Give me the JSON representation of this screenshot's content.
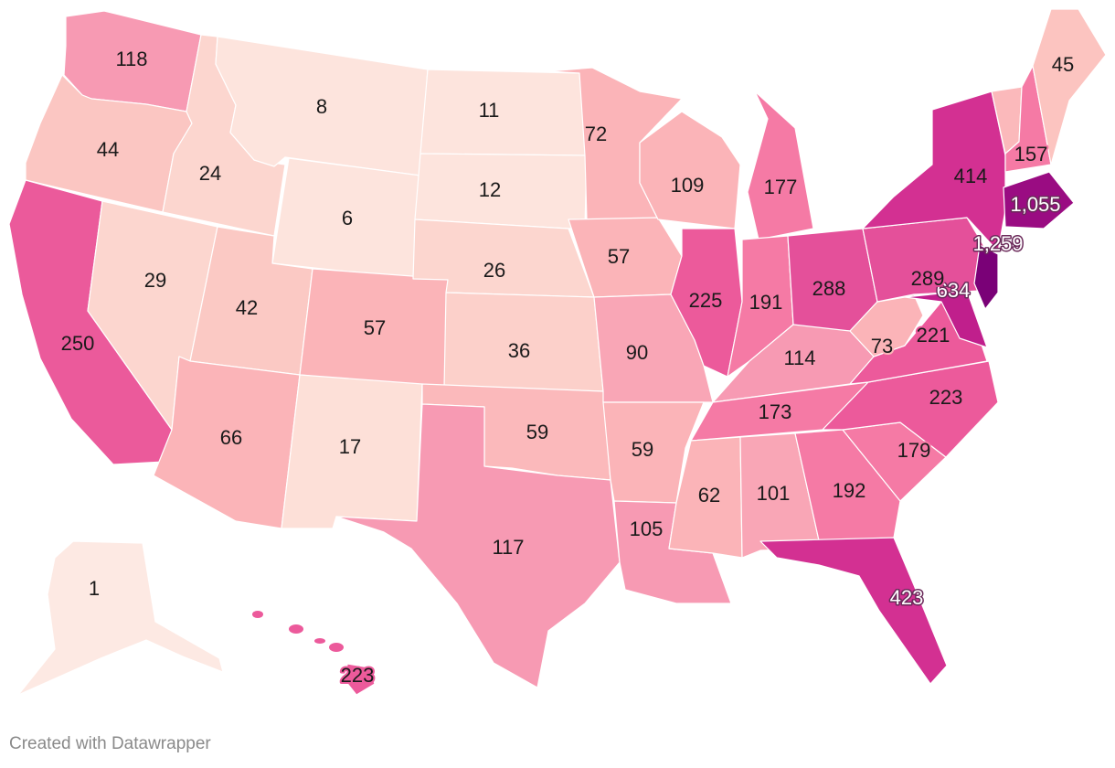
{
  "footer": {
    "credit": "Created with Datawrapper"
  },
  "chart_data": {
    "type": "choropleth",
    "title": "",
    "region": "United States",
    "colorscale": {
      "low": "#fde9e3",
      "mid": "#f47aa5",
      "high": "#7a0177"
    },
    "states": [
      {
        "state": "Washington",
        "abbr": "WA",
        "value": 118
      },
      {
        "state": "Oregon",
        "abbr": "OR",
        "value": 44
      },
      {
        "state": "California",
        "abbr": "CA",
        "value": 250
      },
      {
        "state": "Idaho",
        "abbr": "ID",
        "value": 24
      },
      {
        "state": "Nevada",
        "abbr": "NV",
        "value": 29
      },
      {
        "state": "Montana",
        "abbr": "MT",
        "value": 8
      },
      {
        "state": "Wyoming",
        "abbr": "WY",
        "value": 6
      },
      {
        "state": "Utah",
        "abbr": "UT",
        "value": 42
      },
      {
        "state": "Arizona",
        "abbr": "AZ",
        "value": 66
      },
      {
        "state": "Colorado",
        "abbr": "CO",
        "value": 57
      },
      {
        "state": "New Mexico",
        "abbr": "NM",
        "value": 17
      },
      {
        "state": "North Dakota",
        "abbr": "ND",
        "value": 11
      },
      {
        "state": "South Dakota",
        "abbr": "SD",
        "value": 12
      },
      {
        "state": "Nebraska",
        "abbr": "NE",
        "value": 26
      },
      {
        "state": "Kansas",
        "abbr": "KS",
        "value": 36
      },
      {
        "state": "Oklahoma",
        "abbr": "OK",
        "value": 59
      },
      {
        "state": "Texas",
        "abbr": "TX",
        "value": 117
      },
      {
        "state": "Minnesota",
        "abbr": "MN",
        "value": 72
      },
      {
        "state": "Iowa",
        "abbr": "IA",
        "value": 57
      },
      {
        "state": "Missouri",
        "abbr": "MO",
        "value": 90
      },
      {
        "state": "Arkansas",
        "abbr": "AR",
        "value": 59
      },
      {
        "state": "Louisiana",
        "abbr": "LA",
        "value": 105
      },
      {
        "state": "Wisconsin",
        "abbr": "WI",
        "value": 109
      },
      {
        "state": "Illinois",
        "abbr": "IL",
        "value": 225
      },
      {
        "state": "Michigan",
        "abbr": "MI",
        "value": 177
      },
      {
        "state": "Indiana",
        "abbr": "IN",
        "value": 191
      },
      {
        "state": "Ohio",
        "abbr": "OH",
        "value": 288
      },
      {
        "state": "Kentucky",
        "abbr": "KY",
        "value": 114
      },
      {
        "state": "Tennessee",
        "abbr": "TN",
        "value": 173
      },
      {
        "state": "Mississippi",
        "abbr": "MS",
        "value": 62
      },
      {
        "state": "Alabama",
        "abbr": "AL",
        "value": 101
      },
      {
        "state": "Georgia",
        "abbr": "GA",
        "value": 192
      },
      {
        "state": "Florida",
        "abbr": "FL",
        "value": 423
      },
      {
        "state": "South Carolina",
        "abbr": "SC",
        "value": 179
      },
      {
        "state": "North Carolina",
        "abbr": "NC",
        "value": 223
      },
      {
        "state": "Virginia",
        "abbr": "VA",
        "value": 221
      },
      {
        "state": "West Virginia",
        "abbr": "WV",
        "value": 73
      },
      {
        "state": "Maryland",
        "abbr": "MD",
        "value": 634
      },
      {
        "state": "Pennsylvania",
        "abbr": "PA",
        "value": 289
      },
      {
        "state": "New Jersey",
        "abbr": "NJ",
        "value": 1259
      },
      {
        "state": "New York",
        "abbr": "NY",
        "value": 414
      },
      {
        "state": "Massachusetts",
        "abbr": "MA",
        "value": 1055
      },
      {
        "state": "New Hampshire",
        "abbr": "NH",
        "value": 157
      },
      {
        "state": "Maine",
        "abbr": "ME",
        "value": 45
      },
      {
        "state": "Alaska",
        "abbr": "AK",
        "value": 1
      },
      {
        "state": "Hawaii",
        "abbr": "HI",
        "value": 223
      }
    ],
    "labels": [
      {
        "abbr": "WA",
        "text": "118"
      },
      {
        "abbr": "OR",
        "text": "44"
      },
      {
        "abbr": "CA",
        "text": "250"
      },
      {
        "abbr": "ID",
        "text": "24"
      },
      {
        "abbr": "NV",
        "text": "29"
      },
      {
        "abbr": "MT",
        "text": "8"
      },
      {
        "abbr": "WY",
        "text": "6"
      },
      {
        "abbr": "UT",
        "text": "42"
      },
      {
        "abbr": "AZ",
        "text": "66"
      },
      {
        "abbr": "CO",
        "text": "57"
      },
      {
        "abbr": "NM",
        "text": "17"
      },
      {
        "abbr": "ND",
        "text": "11"
      },
      {
        "abbr": "SD",
        "text": "12"
      },
      {
        "abbr": "NE",
        "text": "26"
      },
      {
        "abbr": "KS",
        "text": "36"
      },
      {
        "abbr": "OK",
        "text": "59"
      },
      {
        "abbr": "TX",
        "text": "117"
      },
      {
        "abbr": "MN",
        "text": "72"
      },
      {
        "abbr": "IA",
        "text": "57"
      },
      {
        "abbr": "MO",
        "text": "90"
      },
      {
        "abbr": "AR",
        "text": "59"
      },
      {
        "abbr": "LA",
        "text": "105"
      },
      {
        "abbr": "WI",
        "text": "109"
      },
      {
        "abbr": "IL",
        "text": "225"
      },
      {
        "abbr": "MI",
        "text": "177"
      },
      {
        "abbr": "IN",
        "text": "191"
      },
      {
        "abbr": "OH",
        "text": "288"
      },
      {
        "abbr": "KY",
        "text": "114"
      },
      {
        "abbr": "TN",
        "text": "173"
      },
      {
        "abbr": "MS",
        "text": "62"
      },
      {
        "abbr": "AL",
        "text": "101"
      },
      {
        "abbr": "GA",
        "text": "192"
      },
      {
        "abbr": "FL",
        "text": "423"
      },
      {
        "abbr": "SC",
        "text": "179"
      },
      {
        "abbr": "NC",
        "text": "223"
      },
      {
        "abbr": "VA",
        "text": "221"
      },
      {
        "abbr": "WV",
        "text": "73"
      },
      {
        "abbr": "MD",
        "text": "634"
      },
      {
        "abbr": "PA",
        "text": "289"
      },
      {
        "abbr": "NJ",
        "text": "1,259"
      },
      {
        "abbr": "NY",
        "text": "414"
      },
      {
        "abbr": "MA",
        "text": "1,055"
      },
      {
        "abbr": "NH",
        "text": "157"
      },
      {
        "abbr": "ME",
        "text": "45"
      },
      {
        "abbr": "AK",
        "text": "1"
      },
      {
        "abbr": "HI",
        "text": "223"
      }
    ]
  }
}
